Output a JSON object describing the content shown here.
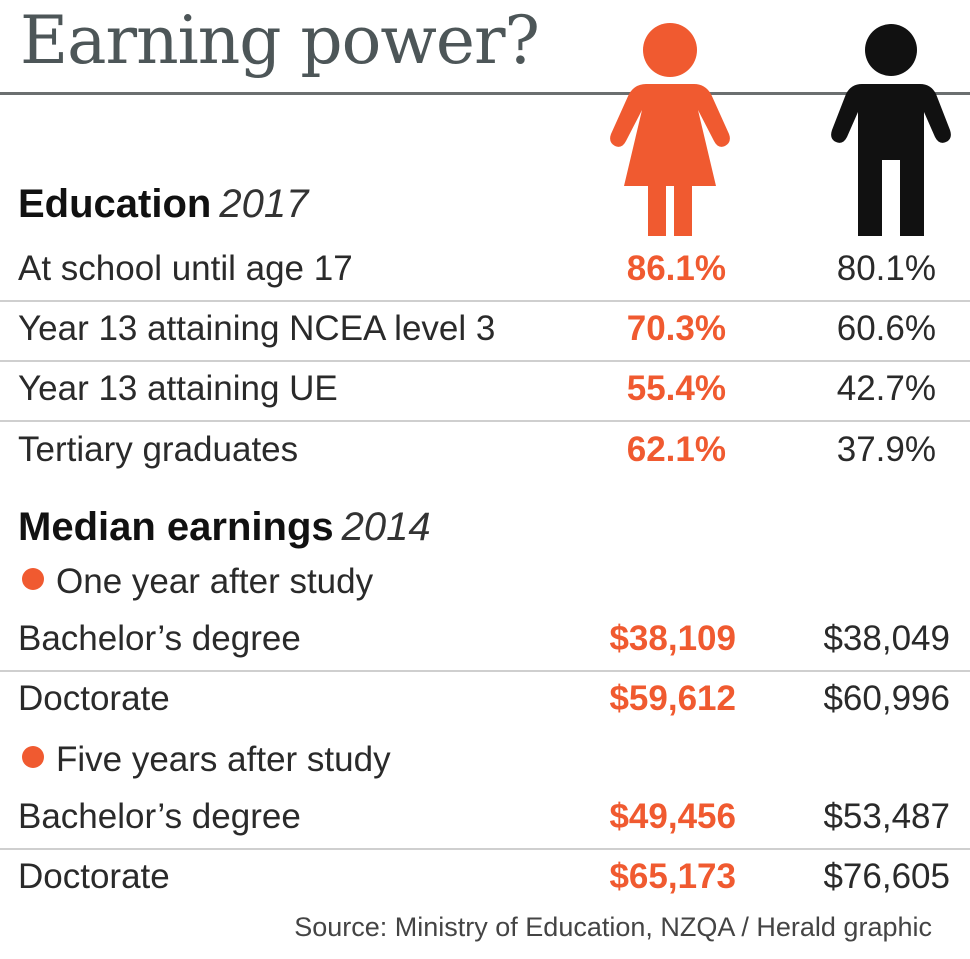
{
  "title": "Earning power?",
  "colors": {
    "female": "#f05a30",
    "male": "#111111"
  },
  "icons": {
    "female": "woman-figure-icon",
    "male": "man-figure-icon"
  },
  "chart_data": {
    "type": "table",
    "series": [
      {
        "name": "",
        "icon": "woman-figure-icon",
        "color": "#f05a30"
      },
      {
        "name": "",
        "icon": "man-figure-icon",
        "color": "#111111"
      }
    ],
    "education": {
      "heading": "Education",
      "year": "2017",
      "rows": [
        {
          "label": "At school until age 17",
          "female": "86.1%",
          "male": "80.1%"
        },
        {
          "label": "Year 13 attaining NCEA level 3",
          "female": "70.3%",
          "male": "60.6%"
        },
        {
          "label": "Year 13 attaining UE",
          "female": "55.4%",
          "male": "42.7%"
        },
        {
          "label": "Tertiary  graduates",
          "female": "62.1%",
          "male": "37.9%"
        }
      ]
    },
    "earnings": {
      "heading": "Median earnings",
      "year": "2014",
      "groups": [
        {
          "label": "One year after study",
          "rows": [
            {
              "label": "Bachelor’s degree",
              "female": "$38,109",
              "male": "$38,049"
            },
            {
              "label": "Doctorate",
              "female": "$59,612",
              "male": "$60,996"
            }
          ]
        },
        {
          "label": "Five years after study",
          "rows": [
            {
              "label": "Bachelor’s degree",
              "female": "$49,456",
              "male": "$53,487"
            },
            {
              "label": "Doctorate",
              "female": "$65,173",
              "male": "$76,605"
            }
          ]
        }
      ]
    }
  },
  "source": "Source: Ministry of Education, NZQA / Herald graphic"
}
